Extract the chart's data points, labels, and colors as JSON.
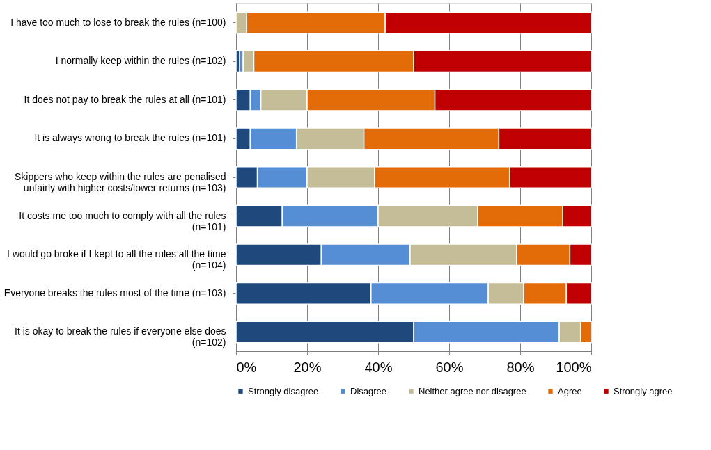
{
  "chart_data": {
    "type": "bar",
    "orientation": "horizontal",
    "stacked": true,
    "categories": [
      "I have too much to lose to break the rules (n=100)",
      "I normally keep within the rules (n=102)",
      "It does not pay to break the rules at all (n=101)",
      "It is always wrong to break the rules (n=101)",
      "Skippers who keep within the rules are penalised\nunfairly with higher costs/lower returns (n=103)",
      "It costs me too much to comply with all the rules\n(n=101)",
      "I would go broke if I kept to all the rules all the time\n(n=104)",
      "Everyone breaks the rules most of the time (n=103)",
      "It is okay to break the rules if everyone else does\n(n=102)"
    ],
    "series": [
      {
        "name": "Strongly disagree",
        "color": "#1f497d",
        "values": [
          0,
          1,
          4,
          4,
          6,
          13,
          24,
          38,
          50
        ]
      },
      {
        "name": "Disagree",
        "color": "#558ed5",
        "values": [
          0,
          1,
          3,
          13,
          14,
          27,
          25,
          33,
          41
        ]
      },
      {
        "name": "Neither agree nor disagree",
        "color": "#c4bd97",
        "values": [
          3,
          3,
          13,
          19,
          19,
          28,
          30,
          10,
          6
        ]
      },
      {
        "name": "Agree",
        "color": "#e36c09",
        "values": [
          39,
          45,
          36,
          38,
          38,
          24,
          15,
          12,
          3
        ]
      },
      {
        "name": "Strongly agree",
        "color": "#c00000",
        "values": [
          58,
          50,
          44,
          26,
          23,
          8,
          6,
          7,
          0
        ]
      }
    ],
    "xlim": [
      0,
      100
    ],
    "xticks": [
      {
        "value": 0,
        "label": "0%"
      },
      {
        "value": 20,
        "label": "20%"
      },
      {
        "value": 40,
        "label": "40%"
      },
      {
        "value": 60,
        "label": "60%"
      },
      {
        "value": 80,
        "label": "80%"
      },
      {
        "value": 100,
        "label": "100%"
      }
    ],
    "grid": "x",
    "legend": "bottom"
  }
}
